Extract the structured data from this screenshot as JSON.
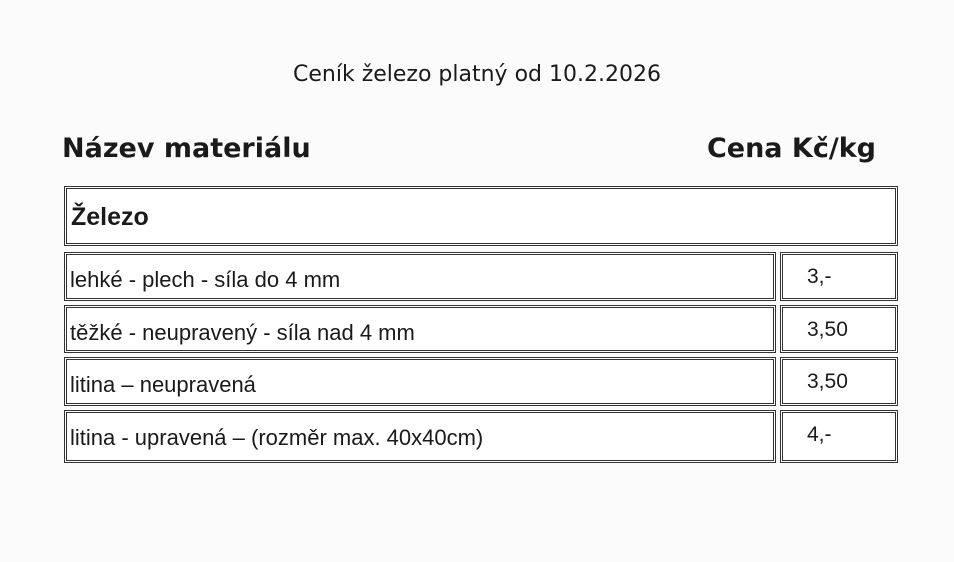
{
  "title": "Ceník železo platný od 10.2.2026",
  "headers": {
    "material": "Název materiálu",
    "price": "Cena Kč/kg"
  },
  "category": "Železo",
  "rows": [
    {
      "name": "lehké - plech - síla do 4 mm",
      "price": "3,-"
    },
    {
      "name": "těžké - neupravený - síla nad 4 mm",
      "price": "3,50"
    },
    {
      "name": "litina – neupravená",
      "price": "3,50"
    },
    {
      "name": "litina - upravená – (rozměr max. 40x40cm)",
      "price": "4,-"
    }
  ]
}
